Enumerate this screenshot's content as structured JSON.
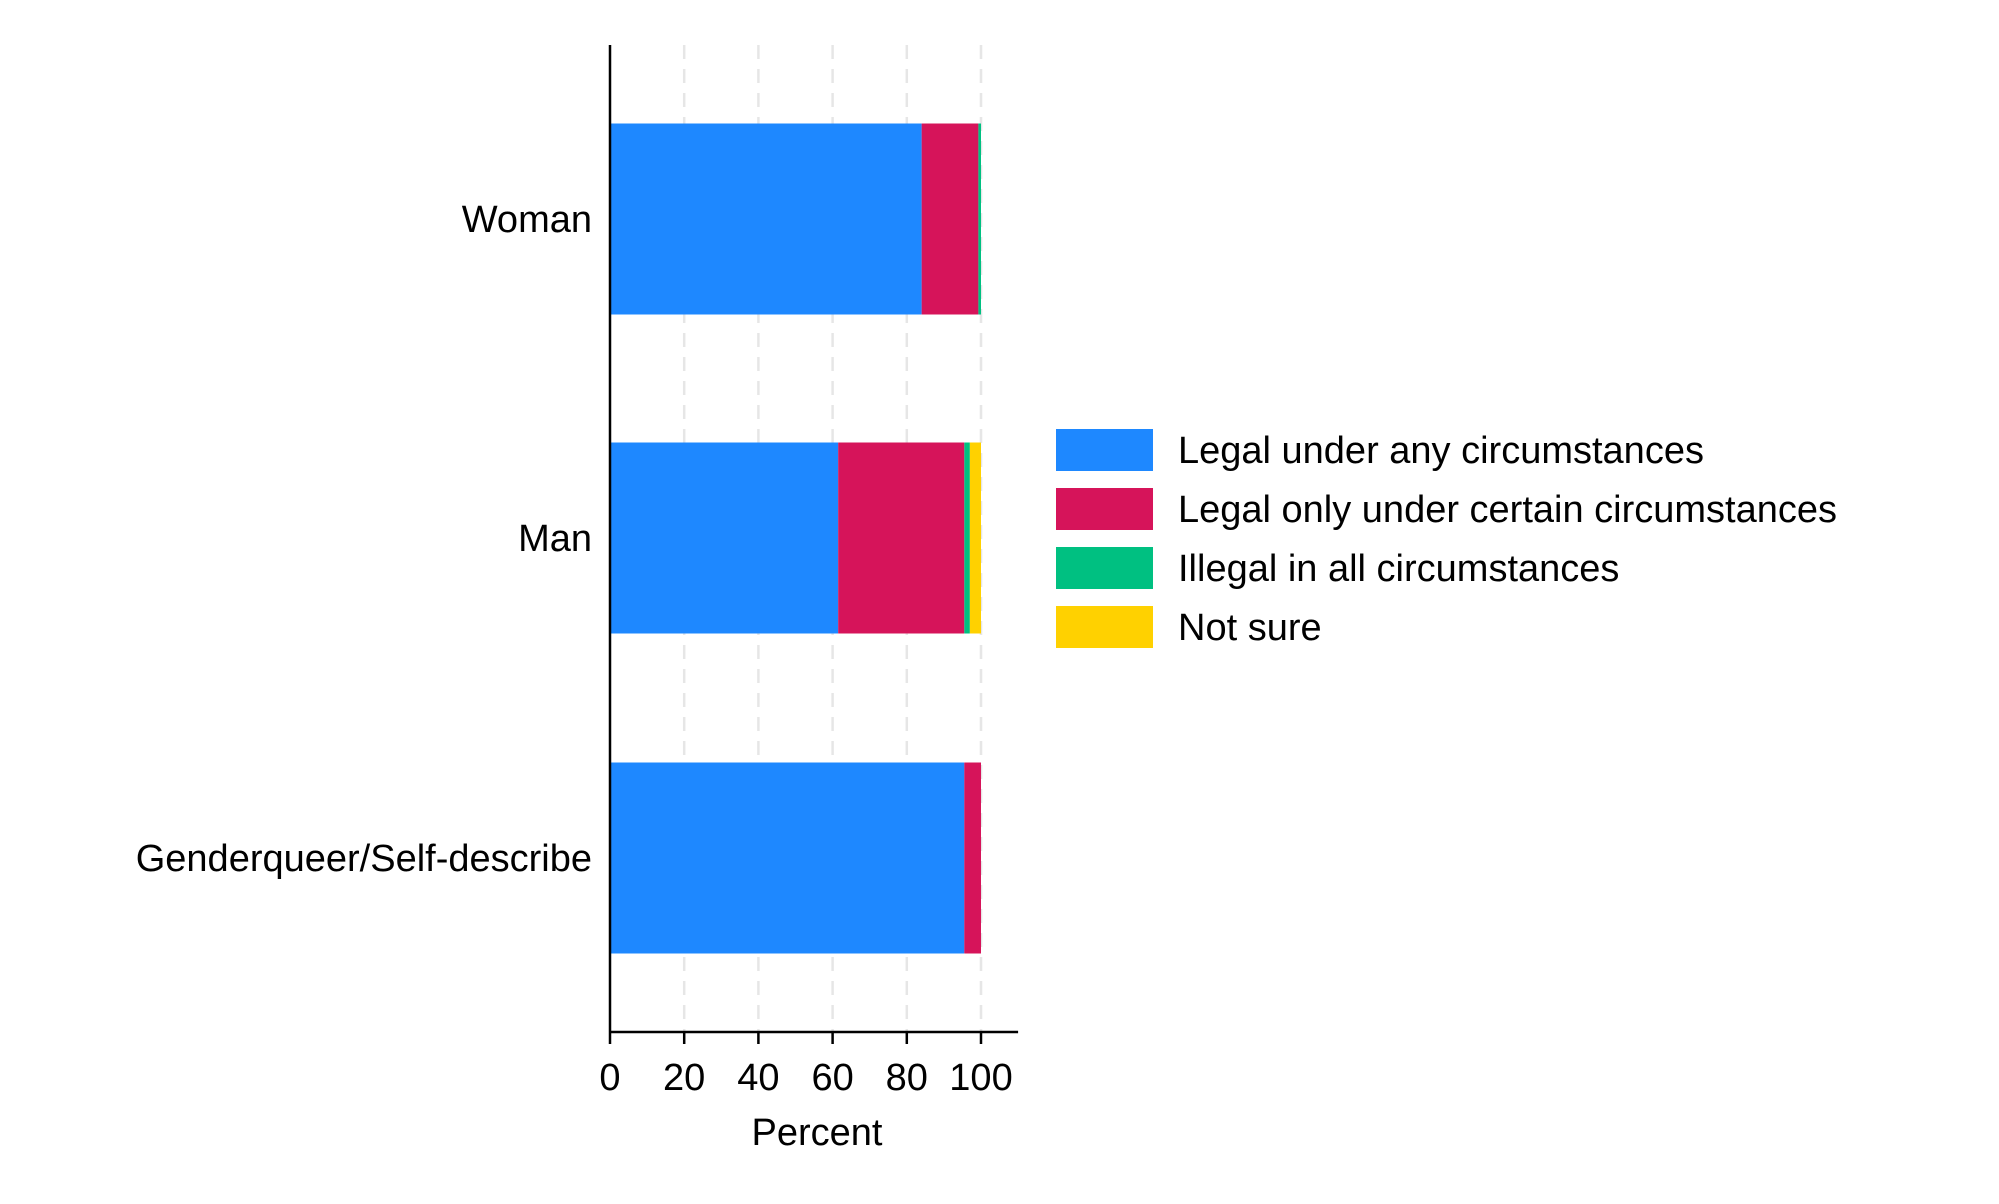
{
  "chart_data": {
    "type": "bar",
    "orientation": "horizontal",
    "stacked": true,
    "categories": [
      "Woman",
      "Man",
      "Genderqueer/Self-describe"
    ],
    "series": [
      {
        "name": "Legal under any circumstances",
        "color": "#1E88FF",
        "values": [
          84.0,
          61.5,
          95.5
        ]
      },
      {
        "name": "Legal only under certain circumstances",
        "color": "#D6145A",
        "values": [
          15.3,
          34.0,
          4.5
        ]
      },
      {
        "name": "Illegal in all circumstances",
        "color": "#00C081",
        "values": [
          0.7,
          1.5,
          0.0
        ]
      },
      {
        "name": "Not sure",
        "color": "#FFD100",
        "values": [
          0.0,
          3.0,
          0.0
        ]
      }
    ],
    "xlabel": "Percent",
    "ylabel": "",
    "xlim": [
      0,
      110
    ],
    "xticks": [
      0,
      20,
      40,
      60,
      80,
      100
    ],
    "xtick_labels": [
      "0",
      "20",
      "40",
      "60",
      "80",
      "100"
    ],
    "grid": "vertical dashed",
    "legend_position": "right"
  }
}
